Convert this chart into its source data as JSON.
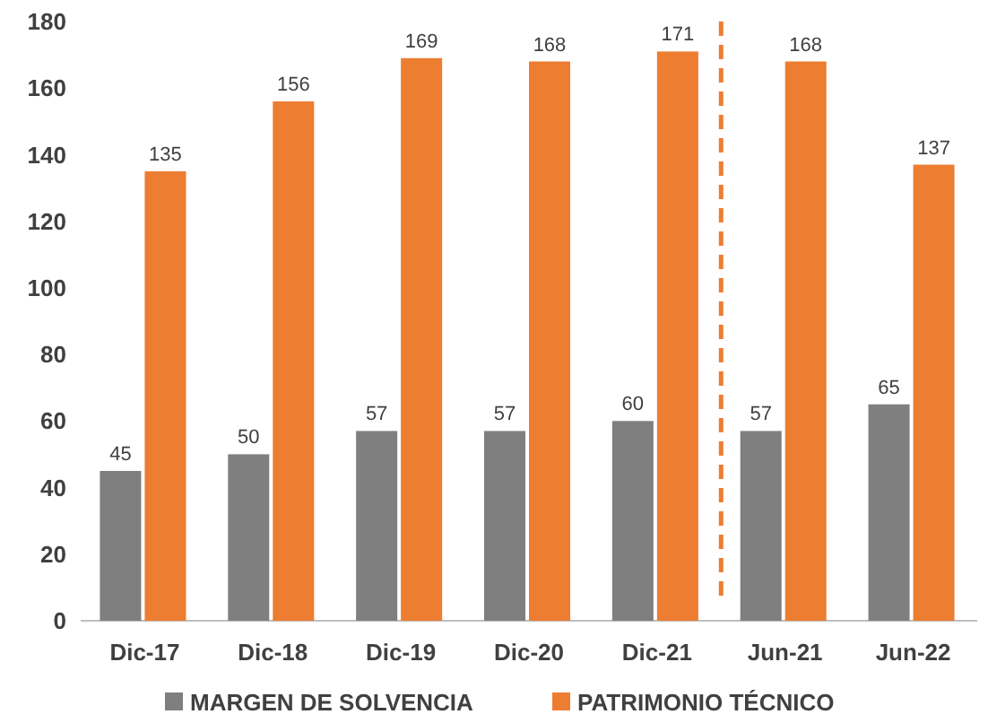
{
  "chart_data": {
    "type": "bar",
    "categories": [
      "Dic-17",
      "Dic-18",
      "Dic-19",
      "Dic-20",
      "Dic-21",
      "Jun-21",
      "Jun-22"
    ],
    "series": [
      {
        "name": "MARGEN DE SOLVENCIA",
        "color": "#7f7f7f",
        "values": [
          45,
          50,
          57,
          57,
          60,
          57,
          65
        ]
      },
      {
        "name": "PATRIMONIO TÉCNICO",
        "color": "#ed7d31",
        "values": [
          135,
          156,
          169,
          168,
          171,
          168,
          137
        ]
      }
    ],
    "ylim": [
      0,
      180
    ],
    "yticks": [
      0,
      20,
      40,
      60,
      80,
      100,
      120,
      140,
      160,
      180
    ],
    "data_labels": true,
    "legend": "bottom"
  }
}
